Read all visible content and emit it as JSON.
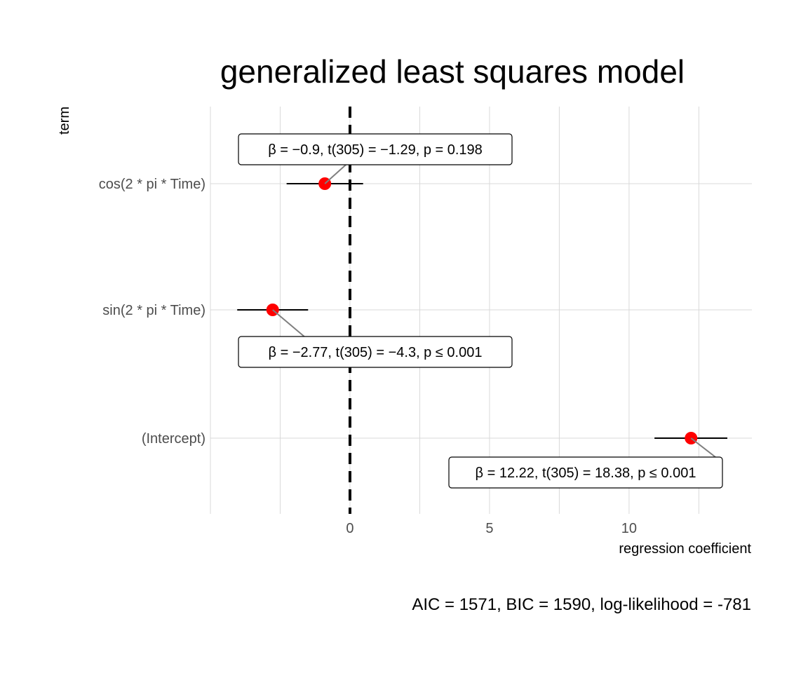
{
  "chart_data": {
    "type": "forest",
    "title": "generalized least squares model",
    "xlabel": "regression coefficient",
    "ylabel": "term",
    "xlim": [
      -5,
      14.4
    ],
    "x_ticks": [
      0,
      5,
      10
    ],
    "reference_line": 0,
    "point_color": "#ff0000",
    "grid": true,
    "terms": [
      {
        "term": "cos(2 * pi * Time)",
        "estimate": -0.9,
        "conf_low": -2.27,
        "conf_high": 0.47,
        "label": "β = −0.9,  t(305) = −1.29,  p = 0.198"
      },
      {
        "term": "sin(2 * pi * Time)",
        "estimate": -2.77,
        "conf_low": -4.04,
        "conf_high": -1.5,
        "label": "β = −2.77,  t(305) = −4.3,  p ≤ 0.001"
      },
      {
        "term": "(Intercept)",
        "estimate": 12.22,
        "conf_low": 10.91,
        "conf_high": 13.52,
        "label": "β = 12.22,  t(305) = 18.38,  p ≤ 0.001"
      }
    ],
    "caption": "AIC = 1571, BIC = 1590, log-likelihood = -781"
  }
}
